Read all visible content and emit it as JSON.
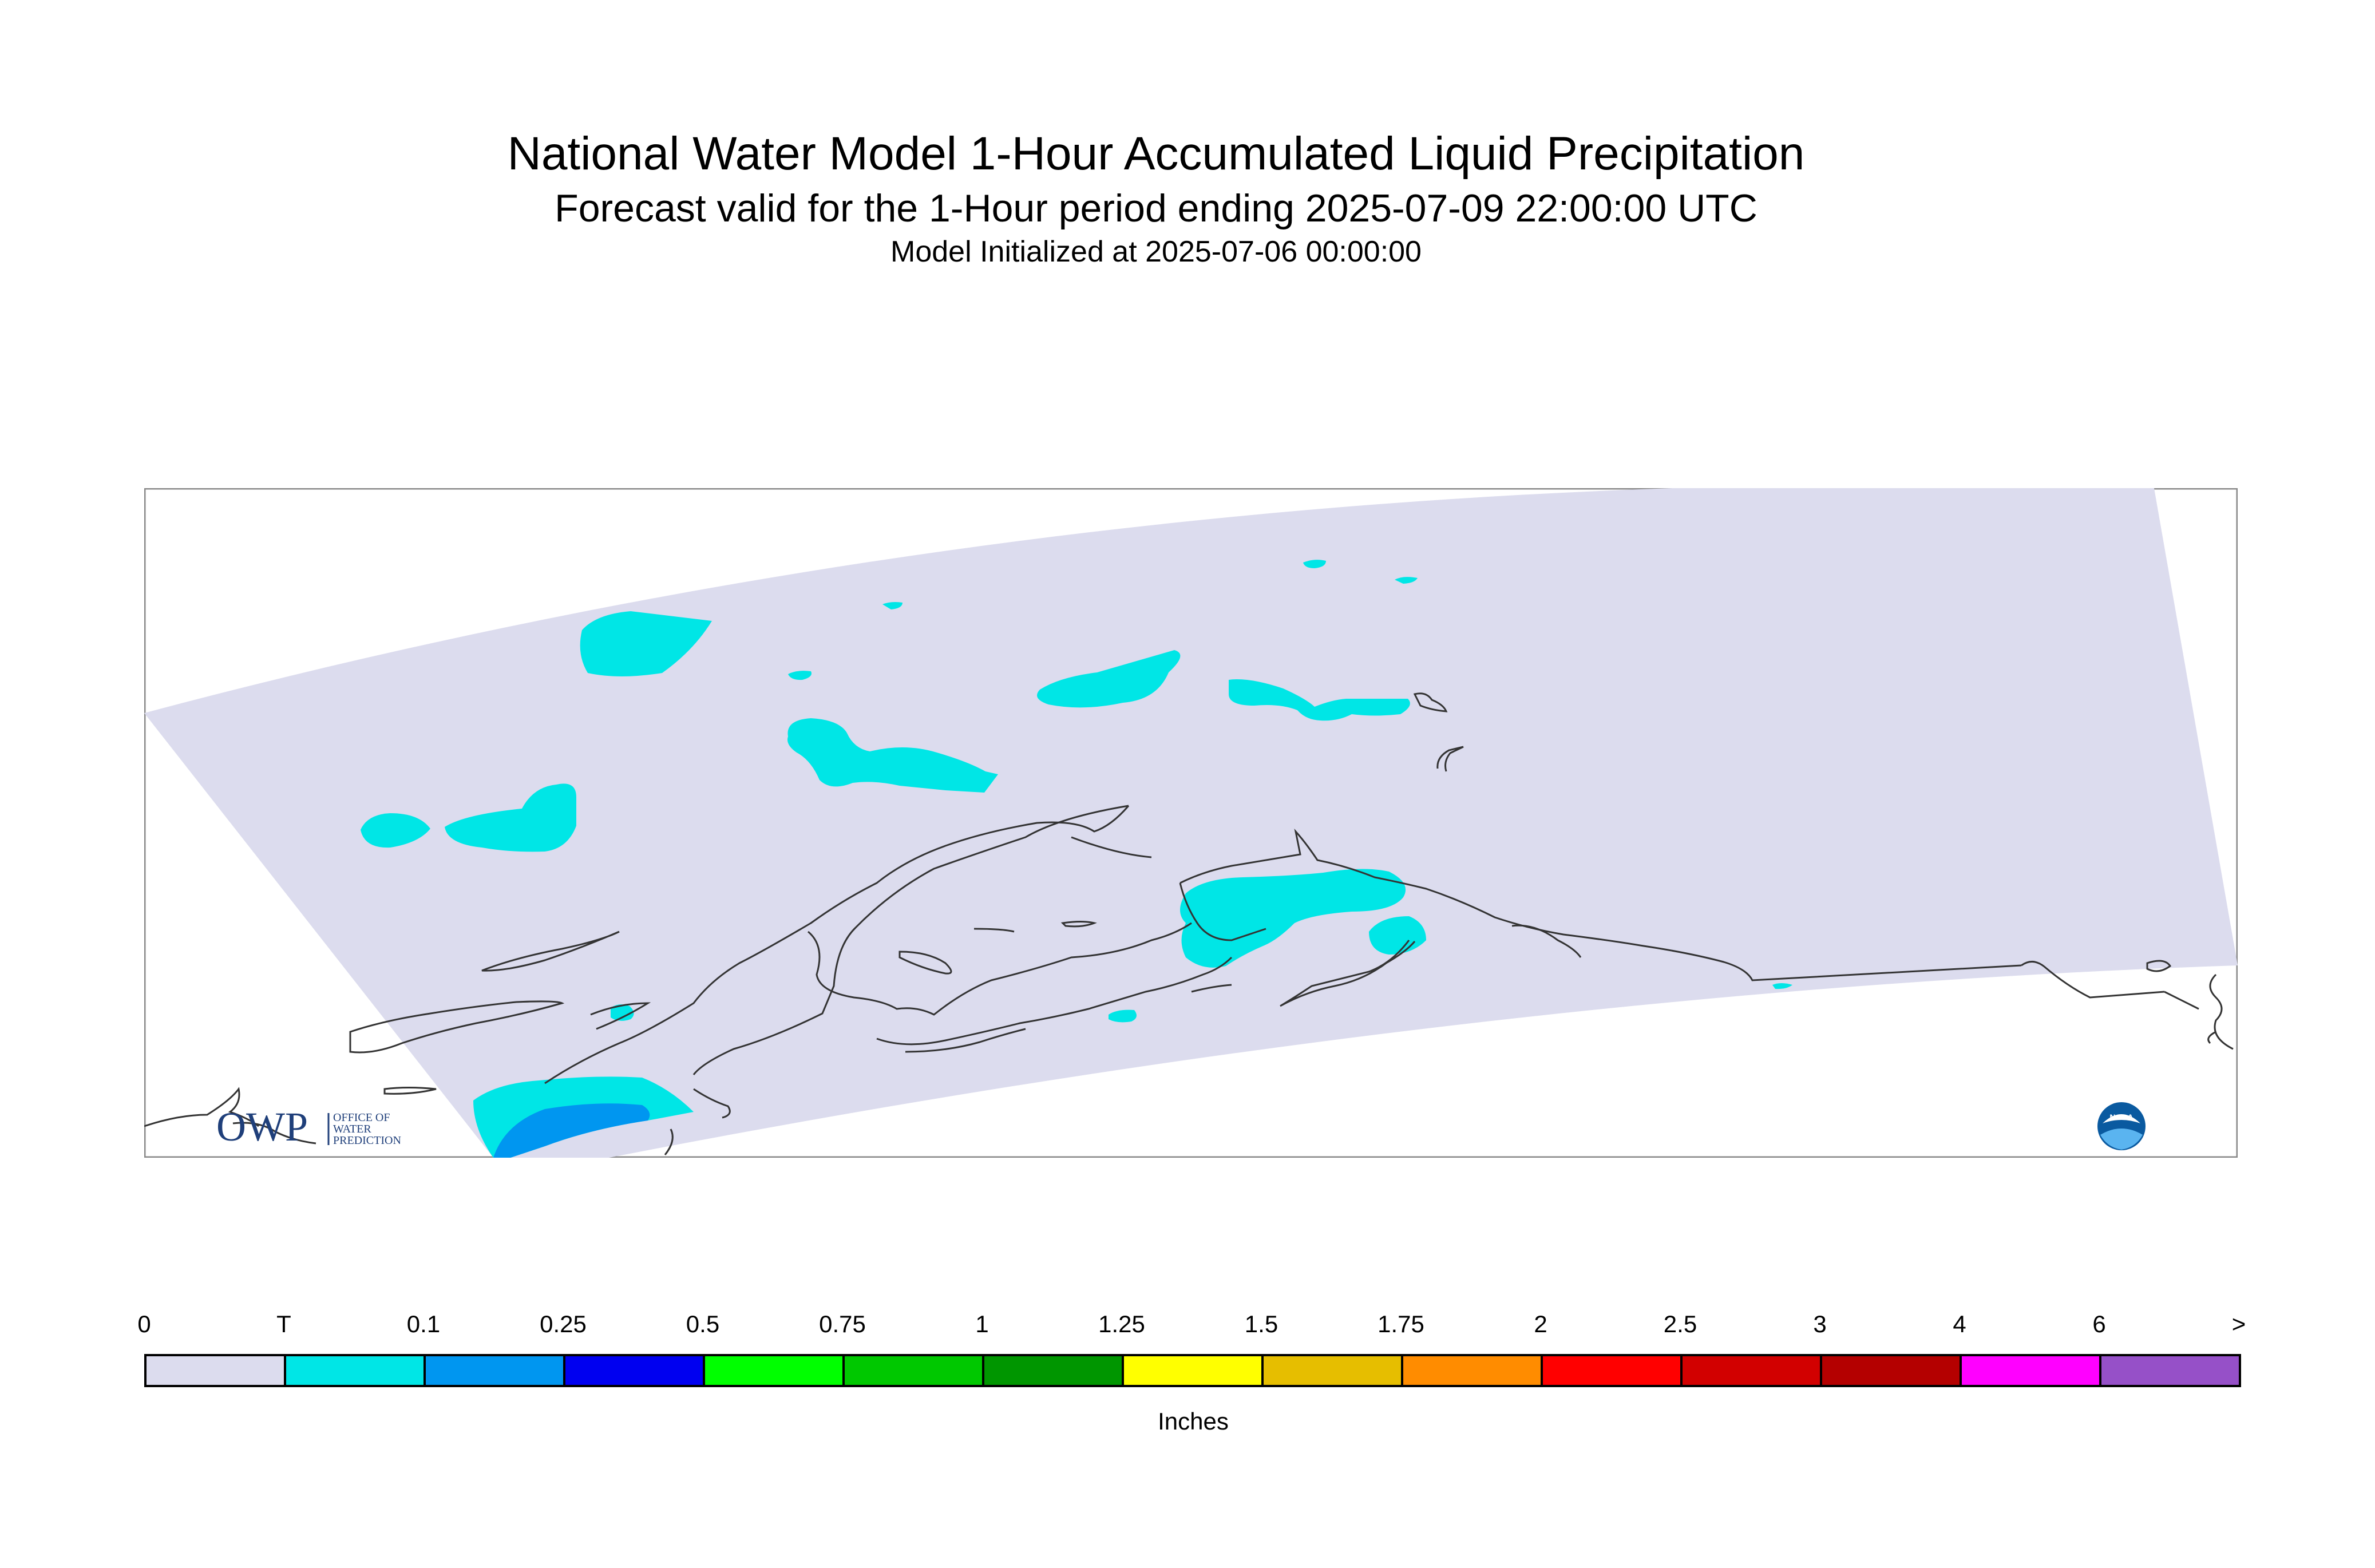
{
  "header": {
    "title": "National Water Model 1-Hour Accumulated Liquid Precipitation",
    "subtitle": "Forecast valid for the 1-Hour period ending 2025-07-09 22:00:00 UTC",
    "init": "Model Initialized at 2025-07-06 00:00:00"
  },
  "map": {
    "domain_fill": "#dcdcee",
    "light_precip_color": "#00e6e6",
    "moderate_precip_color": "#0096f0",
    "coastline_color": "#333333",
    "logos": {
      "owp_mark": "OWP",
      "owp_text": [
        "OFFICE OF",
        "WATER",
        "PREDICTION"
      ],
      "noaa_mark": "NOAA"
    }
  },
  "legend": {
    "labels": [
      "0",
      "T",
      "0.1",
      "0.25",
      "0.5",
      "0.75",
      "1",
      "1.25",
      "1.5",
      "1.75",
      "2",
      "2.5",
      "3",
      "4",
      "6",
      ">"
    ],
    "colors": [
      "#dcdcee",
      "#00e6e6",
      "#0096f0",
      "#0000f0",
      "#00ff00",
      "#00c800",
      "#009600",
      "#ffff00",
      "#e6be00",
      "#ff8c00",
      "#ff0000",
      "#d20000",
      "#b40000",
      "#ff00ff",
      "#9650c8"
    ],
    "units": "Inches"
  }
}
